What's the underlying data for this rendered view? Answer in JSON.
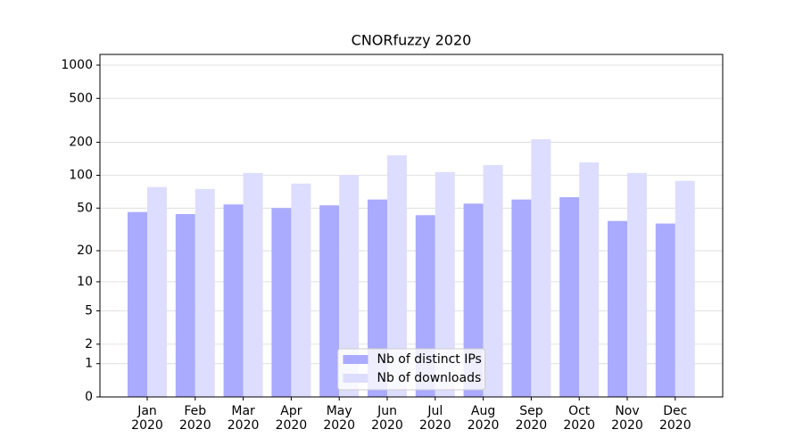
{
  "chart_data": {
    "type": "bar",
    "title": "CNORfuzzy 2020",
    "categories": [
      "Jan\n2020",
      "Feb\n2020",
      "Mar\n2020",
      "Apr\n2020",
      "May\n2020",
      "Jun\n2020",
      "Jul\n2020",
      "Aug\n2020",
      "Sep\n2020",
      "Oct\n2020",
      "Nov\n2020",
      "Dec\n2020"
    ],
    "series": [
      {
        "name": "Nb of distinct IPs",
        "color": "#aaaaff",
        "values": [
          46,
          44,
          54,
          50,
          53,
          60,
          43,
          55,
          60,
          63,
          38,
          36
        ]
      },
      {
        "name": "Nb of downloads",
        "color": "#ddddff",
        "values": [
          78,
          75,
          105,
          84,
          101,
          152,
          107,
          124,
          213,
          131,
          105,
          89
        ]
      }
    ],
    "yscale": "log1p",
    "ylim": [
      0,
      1250
    ],
    "yticks": [
      0,
      1,
      2,
      5,
      10,
      20,
      50,
      100,
      200,
      500,
      1000
    ],
    "grid": true,
    "legend": "lower center"
  }
}
